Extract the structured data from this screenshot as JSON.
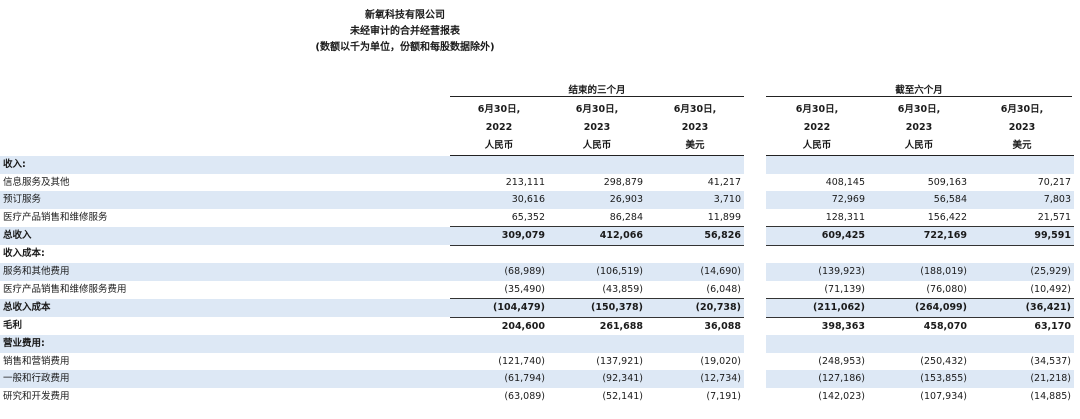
{
  "header": {
    "company": "新氧科技有限公司",
    "statement": "未经审计的合并经营报表",
    "note": "(数额以千为单位，份额和每股数据除外)"
  },
  "groups": [
    {
      "label": "结束的三个月"
    },
    {
      "label": "截至六个月"
    }
  ],
  "columns": [
    {
      "date": "6月30日,",
      "year": "2022",
      "currency": "人民币"
    },
    {
      "date": "6月30日,",
      "year": "2023",
      "currency": "人民币"
    },
    {
      "date": "6月30日,",
      "year": "2023",
      "currency": "美元"
    },
    {
      "date": "6月30日,",
      "year": "2022",
      "currency": "人民币"
    },
    {
      "date": "6月30日,",
      "year": "2023",
      "currency": "人民币"
    },
    {
      "date": "6月30日,",
      "year": "2023",
      "currency": "美元"
    }
  ],
  "rows": [
    {
      "label": "收入:",
      "values": [
        "",
        "",
        "",
        "",
        "",
        ""
      ],
      "shade": true,
      "bold": true,
      "total": false
    },
    {
      "label": "信息服务及其他",
      "values": [
        "213,111",
        "298,879",
        "41,217",
        "408,145",
        "509,163",
        "70,217"
      ],
      "shade": false,
      "bold": false,
      "total": false
    },
    {
      "label": "预订服务",
      "values": [
        "30,616",
        "26,903",
        "3,710",
        "72,969",
        "56,584",
        "7,803"
      ],
      "shade": true,
      "bold": false,
      "total": false
    },
    {
      "label": "医疗产品销售和维修服务",
      "values": [
        "65,352",
        "86,284",
        "11,899",
        "128,311",
        "156,422",
        "21,571"
      ],
      "shade": false,
      "bold": false,
      "total": false
    },
    {
      "label": "总收入",
      "values": [
        "309,079",
        "412,066",
        "56,826",
        "609,425",
        "722,169",
        "99,591"
      ],
      "shade": true,
      "bold": true,
      "total": true
    },
    {
      "label": "收入成本:",
      "values": [
        "",
        "",
        "",
        "",
        "",
        ""
      ],
      "shade": false,
      "bold": true,
      "total": false
    },
    {
      "label": "服务和其他费用",
      "values": [
        "(68,989)",
        "(106,519)",
        "(14,690)",
        "(139,923)",
        "(188,019)",
        "(25,929)"
      ],
      "shade": true,
      "bold": false,
      "total": false
    },
    {
      "label": "医疗产品销售和维修服务费用",
      "values": [
        "(35,490)",
        "(43,859)",
        "(6,048)",
        "(71,139)",
        "(76,080)",
        "(10,492)"
      ],
      "shade": false,
      "bold": false,
      "total": false
    },
    {
      "label": "总收入成本",
      "values": [
        "(104,479)",
        "(150,378)",
        "(20,738)",
        "(211,062)",
        "(264,099)",
        "(36,421)"
      ],
      "shade": true,
      "bold": true,
      "total": true
    },
    {
      "label": "毛利",
      "values": [
        "204,600",
        "261,688",
        "36,088",
        "398,363",
        "458,070",
        "63,170"
      ],
      "shade": false,
      "bold": true,
      "total": false
    },
    {
      "label": "营业费用:",
      "values": [
        "",
        "",
        "",
        "",
        "",
        ""
      ],
      "shade": true,
      "bold": true,
      "total": false
    },
    {
      "label": "销售和营销费用",
      "values": [
        "(121,740)",
        "(137,921)",
        "(19,020)",
        "(248,953)",
        "(250,432)",
        "(34,537)"
      ],
      "shade": false,
      "bold": false,
      "total": false
    },
    {
      "label": "一般和行政费用",
      "values": [
        "(61,794)",
        "(92,341)",
        "(12,734)",
        "(127,186)",
        "(153,855)",
        "(21,218)"
      ],
      "shade": true,
      "bold": false,
      "total": false
    },
    {
      "label": "研究和开发费用",
      "values": [
        "(63,089)",
        "(52,141)",
        "(7,191)",
        "(142,023)",
        "(107,934)",
        "(14,885)"
      ],
      "shade": false,
      "bold": false,
      "total": false
    }
  ]
}
